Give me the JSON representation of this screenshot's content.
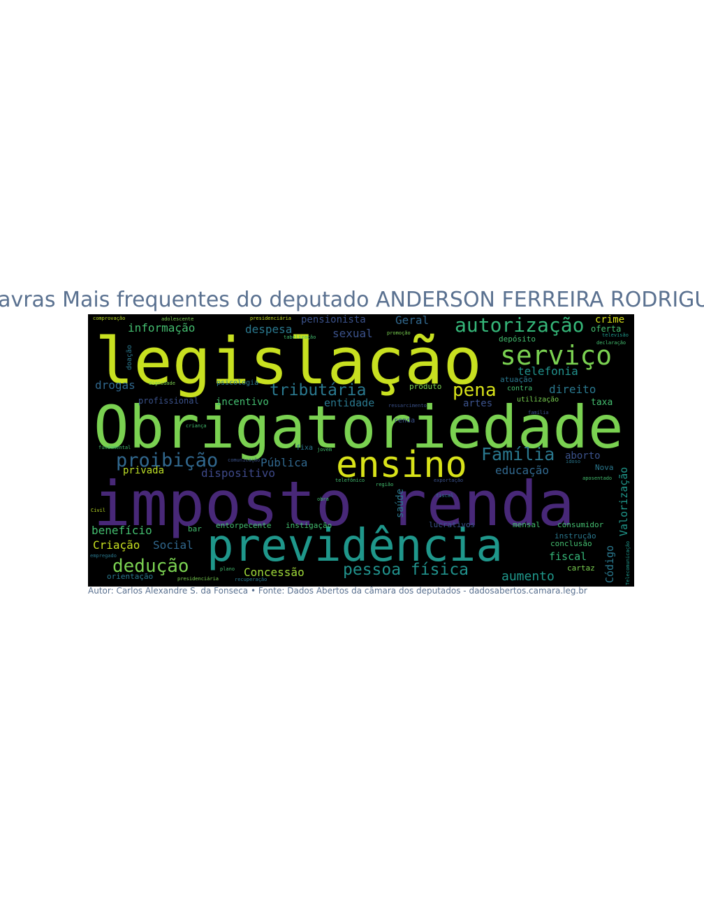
{
  "title": "Palavras Mais frequentes do deputado ANDERSON FERREIRA RODRIGUES",
  "credit": "Autor: Carlos Alexandre S. da Fonseca • Fonte: Dados Abertos da câmara dos deputados - dadosabertos.camara.leg.br",
  "palette": {
    "yellow": "#c8e020",
    "lightgreen": "#7ad151",
    "green": "#44bf70",
    "teal": "#1f978b",
    "blue": "#31688e",
    "indigo": "#3b528b",
    "purple": "#482878",
    "amber": "#d8e219"
  },
  "words": [
    {
      "text": "legislação",
      "color": "#c8e020"
    },
    {
      "text": "Obrigatoriedade",
      "color": "#7ad151"
    },
    {
      "text": "imposto renda",
      "color": "#482878"
    },
    {
      "text": "previdência",
      "color": "#1f978b"
    },
    {
      "text": "ensino",
      "color": "#d8e219"
    },
    {
      "text": "serviço",
      "color": "#7ad151"
    },
    {
      "text": "autorização",
      "color": "#35b779"
    },
    {
      "text": "tributária",
      "color": "#2a788e"
    },
    {
      "text": "proibição",
      "color": "#31688e"
    },
    {
      "text": "Família",
      "color": "#2a788e"
    },
    {
      "text": "pessoa física",
      "color": "#21918c"
    },
    {
      "text": "dedução",
      "color": "#7ad151"
    },
    {
      "text": "pena",
      "color": "#d8e219"
    },
    {
      "text": "informação",
      "color": "#44bf70"
    },
    {
      "text": "despesa",
      "color": "#2a788e"
    },
    {
      "text": "pensionista",
      "color": "#3b528b"
    },
    {
      "text": "Geral",
      "color": "#31688e"
    },
    {
      "text": "sexual",
      "color": "#3b528b"
    },
    {
      "text": "drogas",
      "color": "#31688e"
    },
    {
      "text": "telefonia",
      "color": "#21918c"
    },
    {
      "text": "direito",
      "color": "#2a788e"
    },
    {
      "text": "incentivo",
      "color": "#44bf70"
    },
    {
      "text": "entidade",
      "color": "#2a788e"
    },
    {
      "text": "artes",
      "color": "#3b528b"
    },
    {
      "text": "profissional",
      "color": "#3b528b"
    },
    {
      "text": "Pública",
      "color": "#31688e"
    },
    {
      "text": "dispositivo",
      "color": "#3e4989"
    },
    {
      "text": "privada",
      "color": "#bddf26"
    },
    {
      "text": "educação",
      "color": "#31688e"
    },
    {
      "text": "aborto",
      "color": "#3b528b"
    },
    {
      "text": "benefício",
      "color": "#44bf70"
    },
    {
      "text": "Criação",
      "color": "#c8e020"
    },
    {
      "text": "Social",
      "color": "#31688e"
    },
    {
      "text": "Concessão",
      "color": "#a0da39"
    },
    {
      "text": "aumento",
      "color": "#1f978b"
    },
    {
      "text": "fiscal",
      "color": "#35b779"
    },
    {
      "text": "crime",
      "color": "#d8e219"
    },
    {
      "text": "oferta",
      "color": "#44bf70"
    },
    {
      "text": "depósito",
      "color": "#44bf70"
    },
    {
      "text": "taxa",
      "color": "#44bf70"
    },
    {
      "text": "contra",
      "color": "#44bf70"
    },
    {
      "text": "atuação",
      "color": "#2a788e"
    },
    {
      "text": "utilização",
      "color": "#7ad151"
    },
    {
      "text": "produto",
      "color": "#7ad151"
    },
    {
      "text": "psicologia",
      "color": "#2a788e"
    },
    {
      "text": "entorpecente",
      "color": "#44bf70"
    },
    {
      "text": "instigação",
      "color": "#44bf70"
    },
    {
      "text": "lucrativos",
      "color": "#3b528b"
    },
    {
      "text": "mensal",
      "color": "#44bf70"
    },
    {
      "text": "consumidor",
      "color": "#44bf70"
    },
    {
      "text": "instrução",
      "color": "#2a788e"
    },
    {
      "text": "conclusão",
      "color": "#44bf70"
    },
    {
      "text": "cartaz",
      "color": "#7ad151"
    },
    {
      "text": "orientação",
      "color": "#2a788e"
    },
    {
      "text": "Nova",
      "color": "#2a788e"
    },
    {
      "text": "bar",
      "color": "#44bf70"
    },
    {
      "text": "renda",
      "color": "#3b528b"
    },
    {
      "text": "saúde",
      "color": "#2a788e"
    },
    {
      "text": "Valorização",
      "color": "#1f978b"
    },
    {
      "text": "Código",
      "color": "#2a788e"
    },
    {
      "text": "fixa",
      "color": "#2a788e"
    },
    {
      "text": "comprovação",
      "color": "#bddf26"
    },
    {
      "text": "adolescente",
      "color": "#7ad151"
    },
    {
      "text": "presidenciária",
      "color": "#c8e020"
    },
    {
      "text": "doação",
      "color": "#2a788e"
    },
    {
      "text": "dignidade",
      "color": "#7ad151"
    },
    {
      "text": "telefônico",
      "color": "#44bf70"
    },
    {
      "text": "ressarcimento",
      "color": "#3b528b"
    },
    {
      "text": "presidenciária",
      "color": "#7ad151"
    },
    {
      "text": "Civil",
      "color": "#bddf26"
    },
    {
      "text": "empregado",
      "color": "#2a788e"
    },
    {
      "text": "fundamental",
      "color": "#44bf70"
    },
    {
      "text": "criança",
      "color": "#44bf70"
    },
    {
      "text": "jovem",
      "color": "#44bf70"
    },
    {
      "text": "região",
      "color": "#44bf70"
    },
    {
      "text": "obra",
      "color": "#44bf70"
    },
    {
      "text": "declaração",
      "color": "#44bf70"
    },
    {
      "text": "aposentado",
      "color": "#44bf70"
    },
    {
      "text": "recuperação",
      "color": "#2a788e"
    },
    {
      "text": "plano",
      "color": "#44bf70"
    },
    {
      "text": "promoção",
      "color": "#7ad151"
    },
    {
      "text": "idoso",
      "color": "#2a788e"
    },
    {
      "text": "televisão",
      "color": "#1f978b"
    },
    {
      "text": "fiscal",
      "color": "#2a788e"
    },
    {
      "text": "família",
      "color": "#3b528b"
    },
    {
      "text": "tabelização",
      "color": "#44bf70"
    },
    {
      "text": "Telecomunicação",
      "color": "#1f978b"
    },
    {
      "text": "exportação",
      "color": "#3b528b"
    },
    {
      "text": "comunicação",
      "color": "#3b528b"
    }
  ]
}
